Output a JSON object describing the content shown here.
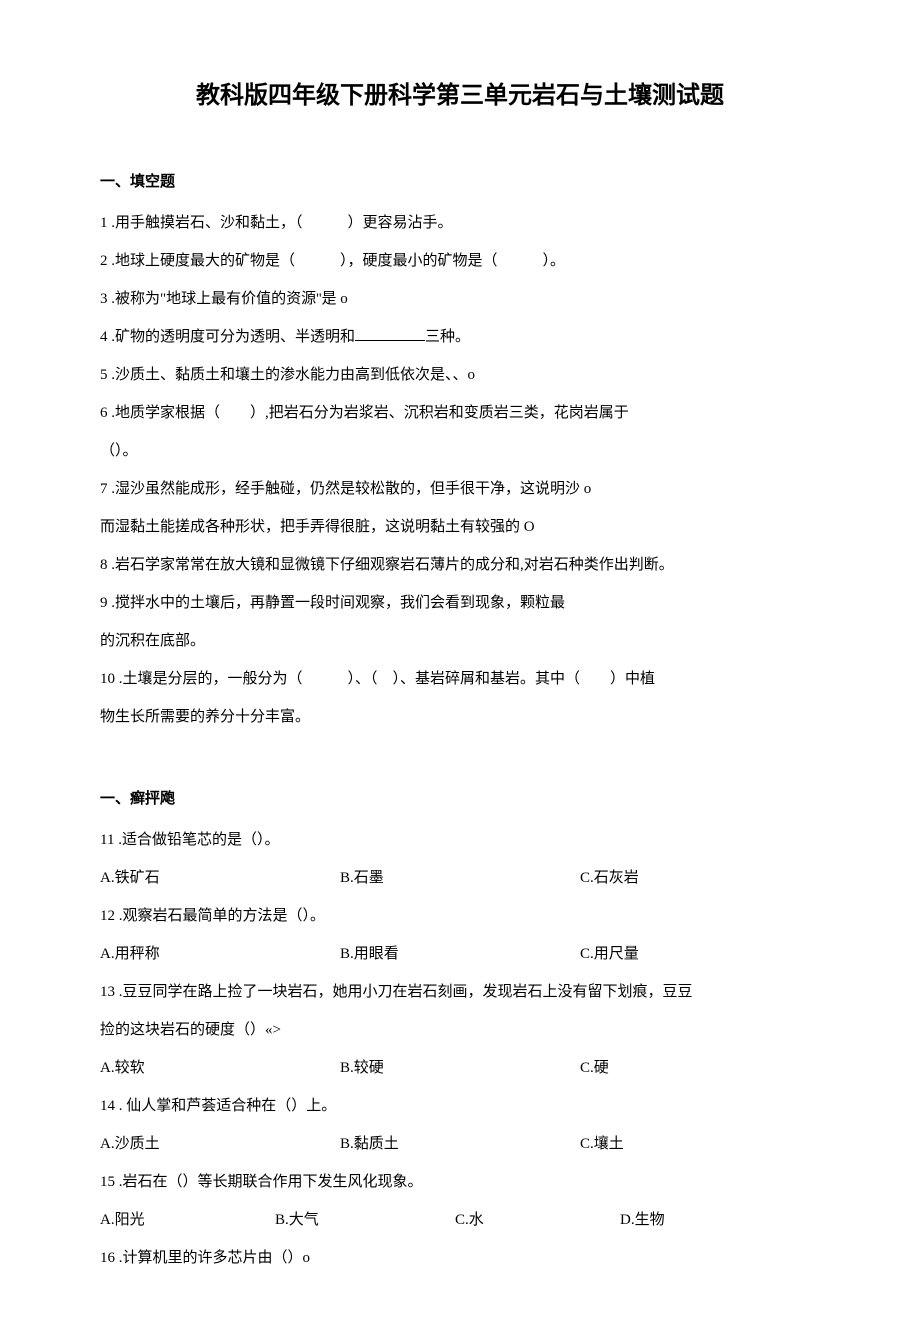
{
  "title": "教科版四年级下册科学第三单元岩石与土壤测试题",
  "section1": {
    "header": "一、填空题",
    "q1": "1 .用手触摸岩石、沙和黏土，（　　　）更容易沾手。",
    "q2": "2 .地球上硬度最大的矿物是（　　　），硬度最小的矿物是（　　　）。",
    "q3": "3 .被称为\"地球上最有价值的资源''是 o",
    "q4_pre": "4 .矿物的透明度可分为透明、半透明和",
    "q4_post": "三种。",
    "q5": "5 .沙质土、黏质土和壤土的渗水能力由高到低依次是、、o",
    "q6a": "6 .地质学家根据（　　）,把岩石分为岩浆岩、沉积岩和变质岩三类，花岗岩属于",
    "q6b": "（）。",
    "q7a": "7 .湿沙虽然能成形，经手触碰，仍然是较松散的，但手很干净，这说明沙 o",
    "q7b": "而湿黏土能搓成各种形状，把手弄得很脏，这说明黏土有较强的 O",
    "q8": "8 .岩石学家常常在放大镜和显微镜下仔细观察岩石薄片的成分和,对岩石种类作出判断。",
    "q9a": "9 .搅拌水中的土壤后，再静置一段时间观察，我们会看到现象，颗粒最",
    "q9b": "的沉积在底部。",
    "q10a": "10 .土壤是分层的，一般分为（　　　）、（　）、基岩碎屑和基岩。其中（　　）中植",
    "q10b": "物生长所需要的养分十分丰富。"
  },
  "section2": {
    "header": "一、癣抨飑",
    "q11": "11 .适合做铅笔芯的是（）。",
    "q11a": "A.铁矿石",
    "q11b": "B.石墨",
    "q11c": "C.石灰岩",
    "q12": "12 .观察岩石最简单的方法是（）。",
    "q12a": "A.用秤称",
    "q12b": "B.用眼看",
    "q12c": "C.用尺量",
    "q13a": "13 .豆豆同学在路上捡了一块岩石，她用小刀在岩石刻画，发现岩石上没有留下划痕，豆豆",
    "q13b": "捡的这块岩石的硬度（）«>",
    "q13opa": "A.较软",
    "q13opb": "B.较硬",
    "q13opc": "C.硬",
    "q14": "14 . 仙人掌和芦荟适合种在（）上。",
    "q14a": "A.沙质土",
    "q14b": "B.黏质土",
    "q14c": "C.壤土",
    "q15": "15 .岩石在（）等长期联合作用下发生风化现象。",
    "q15a": "A.阳光",
    "q15b": "B.大气",
    "q15c": "C.水",
    "q15d": "D.生物",
    "q16": "16 .计算机里的许多芯片由（）o"
  }
}
